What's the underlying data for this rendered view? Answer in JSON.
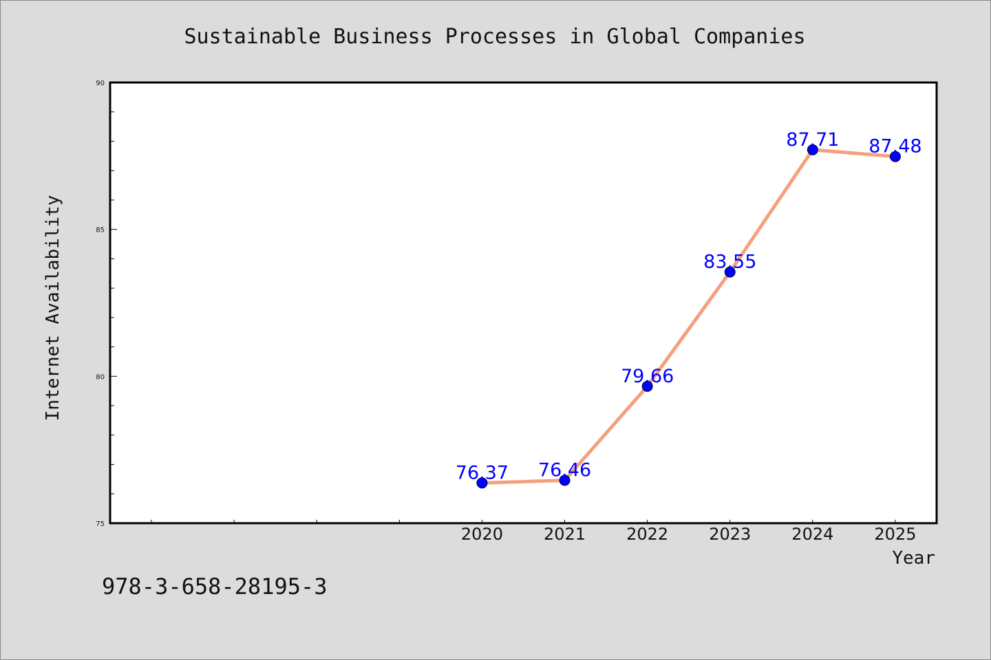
{
  "chart_data": {
    "type": "line",
    "title": "Sustainable Business Processes in Global Companies",
    "xlabel": "Year",
    "ylabel": "Internet Availability",
    "x": [
      "2020",
      "2021",
      "2022",
      "2023",
      "2024",
      "2025"
    ],
    "values": [
      76.37,
      76.46,
      79.66,
      83.55,
      87.71,
      87.48
    ],
    "data_labels": [
      "76.37",
      "76.46",
      "79.66",
      "83.55",
      "87.71",
      "87.48"
    ],
    "ylim": [
      75,
      90
    ],
    "y_ticks": [
      "75",
      "80",
      "85",
      "90"
    ],
    "x_range": [
      2015.5,
      2025.5
    ],
    "grid": false,
    "legend": "none",
    "colors": {
      "line": "#f5a07c",
      "marker": "#0000ff",
      "label": "#0000ff",
      "background": "#dcdcdc",
      "plot_area": "#ffffff"
    }
  },
  "footer": {
    "identifier": "978-3-658-28195-3"
  }
}
